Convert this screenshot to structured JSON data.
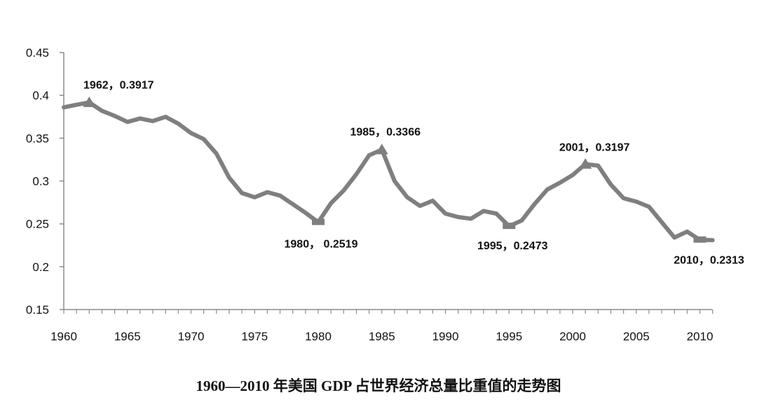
{
  "chart_data": {
    "type": "line",
    "title": "1960—2010 年美国 GDP 占世界经济总量比重值的走势图",
    "xlabel": "",
    "ylabel": "",
    "xlim": [
      1960,
      2011
    ],
    "ylim": [
      0.15,
      0.45
    ],
    "x_ticks": [
      1960,
      1965,
      1970,
      1975,
      1980,
      1985,
      1990,
      1995,
      2000,
      2005,
      2010
    ],
    "y_ticks": [
      "0.15",
      "0.2",
      "0.25",
      "0.3",
      "0.35",
      "0.4",
      "0.45"
    ],
    "grid": false,
    "legend": "none",
    "line_color": "#7f7f7f",
    "series": [
      {
        "x": [
          1960,
          1961,
          1962,
          1963,
          1964,
          1965,
          1966,
          1967,
          1968,
          1969,
          1970,
          1971,
          1972,
          1973,
          1974,
          1975,
          1976,
          1977,
          1978,
          1979,
          1980,
          1981,
          1982,
          1983,
          1984,
          1985,
          1986,
          1987,
          1988,
          1989,
          1990,
          1991,
          1992,
          1993,
          1994,
          1995,
          1996,
          1997,
          1998,
          1999,
          2000,
          2001,
          2002,
          2003,
          2004,
          2005,
          2006,
          2007,
          2008,
          2009,
          2010,
          2011
        ],
        "values": [
          0.386,
          0.389,
          0.3917,
          0.382,
          0.376,
          0.369,
          0.373,
          0.37,
          0.375,
          0.367,
          0.356,
          0.349,
          0.332,
          0.304,
          0.286,
          0.281,
          0.287,
          0.283,
          0.273,
          0.263,
          0.2519,
          0.274,
          0.289,
          0.308,
          0.33,
          0.3366,
          0.3,
          0.281,
          0.271,
          0.277,
          0.262,
          0.258,
          0.256,
          0.265,
          0.262,
          0.2473,
          0.254,
          0.273,
          0.29,
          0.298,
          0.307,
          0.3197,
          0.318,
          0.296,
          0.28,
          0.276,
          0.27,
          0.252,
          0.234,
          0.241,
          0.2313,
          0.231
        ]
      }
    ],
    "annotations": [
      {
        "x": 1962,
        "y": 0.3917,
        "text": "1962，0.3917",
        "position": "above"
      },
      {
        "x": 1980,
        "y": 0.2519,
        "text": "1980，  0.2519",
        "position": "below"
      },
      {
        "x": 1985,
        "y": 0.3366,
        "text": "1985，0.3366",
        "position": "above"
      },
      {
        "x": 1995,
        "y": 0.2473,
        "text": "1995，0.2473",
        "position": "below"
      },
      {
        "x": 2001,
        "y": 0.3197,
        "text": "2001，0.3197",
        "position": "above"
      },
      {
        "x": 2010,
        "y": 0.2313,
        "text": "2010，0.2313",
        "position": "below"
      }
    ]
  }
}
